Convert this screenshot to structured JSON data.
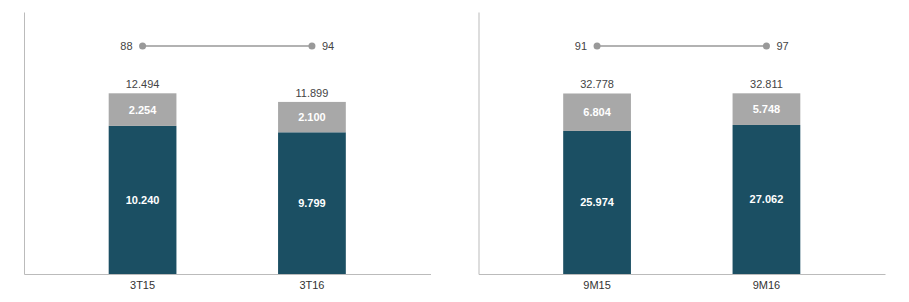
{
  "chart_data": [
    {
      "type": "bar",
      "stacked": true,
      "data_labels": true,
      "tick_labels": "x",
      "categories": [
        "3T15",
        "3T16"
      ],
      "series": [
        {
          "color": "#1b4f63",
          "values": [
            10.24,
            9.799
          ],
          "value_labels": [
            "10.240",
            "9.799"
          ]
        },
        {
          "color": "#a8a8a8",
          "values": [
            2.254,
            2.1
          ],
          "value_labels": [
            "2.254",
            "2.100"
          ]
        }
      ],
      "totals": [
        12.494,
        11.899
      ],
      "total_labels": [
        "12.494",
        "11.899"
      ],
      "annotations": [
        "88",
        "94"
      ],
      "ylim": [
        0,
        18.1163
      ]
    },
    {
      "type": "bar",
      "stacked": true,
      "data_labels": true,
      "tick_labels": "x",
      "categories": [
        "9M15",
        "9M16"
      ],
      "series": [
        {
          "color": "#1b4f63",
          "values": [
            25.974,
            27.062
          ],
          "value_labels": [
            "25.974",
            "27.062"
          ]
        },
        {
          "color": "#a8a8a8",
          "values": [
            6.804,
            5.748
          ],
          "value_labels": [
            "6.804",
            "5.748"
          ]
        }
      ],
      "totals": [
        32.778,
        32.81
      ],
      "total_labels": [
        "32.778",
        "32.811"
      ],
      "annotations": [
        "91",
        "97"
      ],
      "ylim": [
        0,
        47.57595
      ]
    }
  ]
}
